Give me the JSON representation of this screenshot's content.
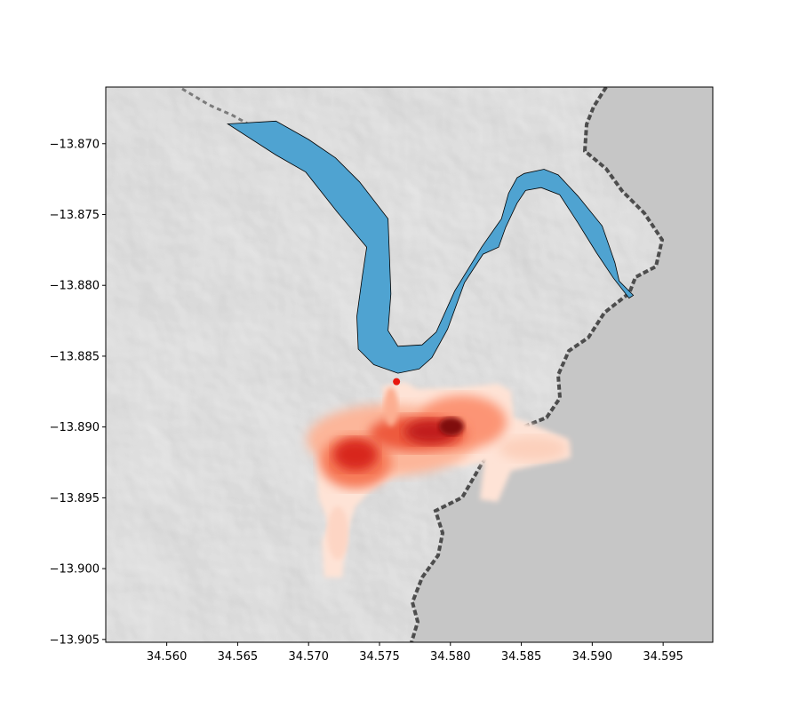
{
  "chart_data": {
    "type": "map",
    "xlim": [
      34.5557,
      34.5985
    ],
    "ylim": [
      -13.9052,
      -13.866
    ],
    "x_ticks": [
      34.56,
      34.565,
      34.57,
      34.575,
      34.58,
      34.585,
      34.59,
      34.595
    ],
    "x_tick_labels": [
      "34.560",
      "34.565",
      "34.570",
      "34.575",
      "34.580",
      "34.585",
      "34.590",
      "34.595"
    ],
    "y_ticks": [
      -13.87,
      -13.875,
      -13.88,
      -13.885,
      -13.89,
      -13.895,
      -13.9,
      -13.905
    ],
    "y_tick_labels": [
      "−13.870",
      "−13.875",
      "−13.880",
      "−13.885",
      "−13.890",
      "−13.895",
      "−13.900",
      "−13.905"
    ],
    "background": "grayscale hillshade terrain with water body on the right",
    "river_polygon": {
      "color": "#4fa3d1",
      "outline": "#000000",
      "outer": [
        [
          34.5643,
          -13.8686
        ],
        [
          34.5677,
          -13.8684
        ],
        [
          34.57,
          -13.8697
        ],
        [
          34.5719,
          -13.871
        ],
        [
          34.5736,
          -13.8727
        ],
        [
          34.5756,
          -13.8753
        ],
        [
          34.5758,
          -13.8806
        ],
        [
          34.5756,
          -13.8832
        ],
        [
          34.5763,
          -13.8843
        ],
        [
          34.578,
          -13.8842
        ],
        [
          34.579,
          -13.8833
        ],
        [
          34.5803,
          -13.8804
        ],
        [
          34.5822,
          -13.8773
        ],
        [
          34.5836,
          -13.8753
        ],
        [
          34.5841,
          -13.8735
        ],
        [
          34.5847,
          -13.8724
        ],
        [
          34.5852,
          -13.8721
        ],
        [
          34.5866,
          -13.8718
        ],
        [
          34.5876,
          -13.8722
        ],
        [
          34.589,
          -13.8737
        ],
        [
          34.5907,
          -13.8758
        ],
        [
          34.5916,
          -13.8784
        ],
        [
          34.5919,
          -13.8797
        ],
        [
          34.5929,
          -13.8807
        ]
      ],
      "inner": [
        [
          34.5926,
          -13.8809
        ],
        [
          34.5915,
          -13.8795
        ],
        [
          34.5903,
          -13.8777
        ],
        [
          34.589,
          -13.8756
        ],
        [
          34.5877,
          -13.8736
        ],
        [
          34.5864,
          -13.8731
        ],
        [
          34.5853,
          -13.8733
        ],
        [
          34.5847,
          -13.8742
        ],
        [
          34.5839,
          -13.8759
        ],
        [
          34.5834,
          -13.8773
        ],
        [
          34.5823,
          -13.8778
        ],
        [
          34.581,
          -13.8798
        ],
        [
          34.5798,
          -13.8831
        ],
        [
          34.5787,
          -13.8851
        ],
        [
          34.5778,
          -13.8859
        ],
        [
          34.5763,
          -13.8862
        ],
        [
          34.5746,
          -13.8856
        ],
        [
          34.5735,
          -13.8845
        ],
        [
          34.5734,
          -13.8822
        ],
        [
          34.5738,
          -13.8793
        ],
        [
          34.5741,
          -13.8773
        ],
        [
          34.572,
          -13.8748
        ],
        [
          34.5698,
          -13.872
        ],
        [
          34.5677,
          -13.8708
        ]
      ]
    },
    "marker": {
      "x": 34.5762,
      "y": -13.8868,
      "color": "#e8160e"
    },
    "heatmap": {
      "colormap": "Reds",
      "note": "intensity of spread below the marker, strongest near (34.5782, -13.8905) and (34.5740, -13.8920)"
    },
    "water_color": "#c6c6c6"
  }
}
